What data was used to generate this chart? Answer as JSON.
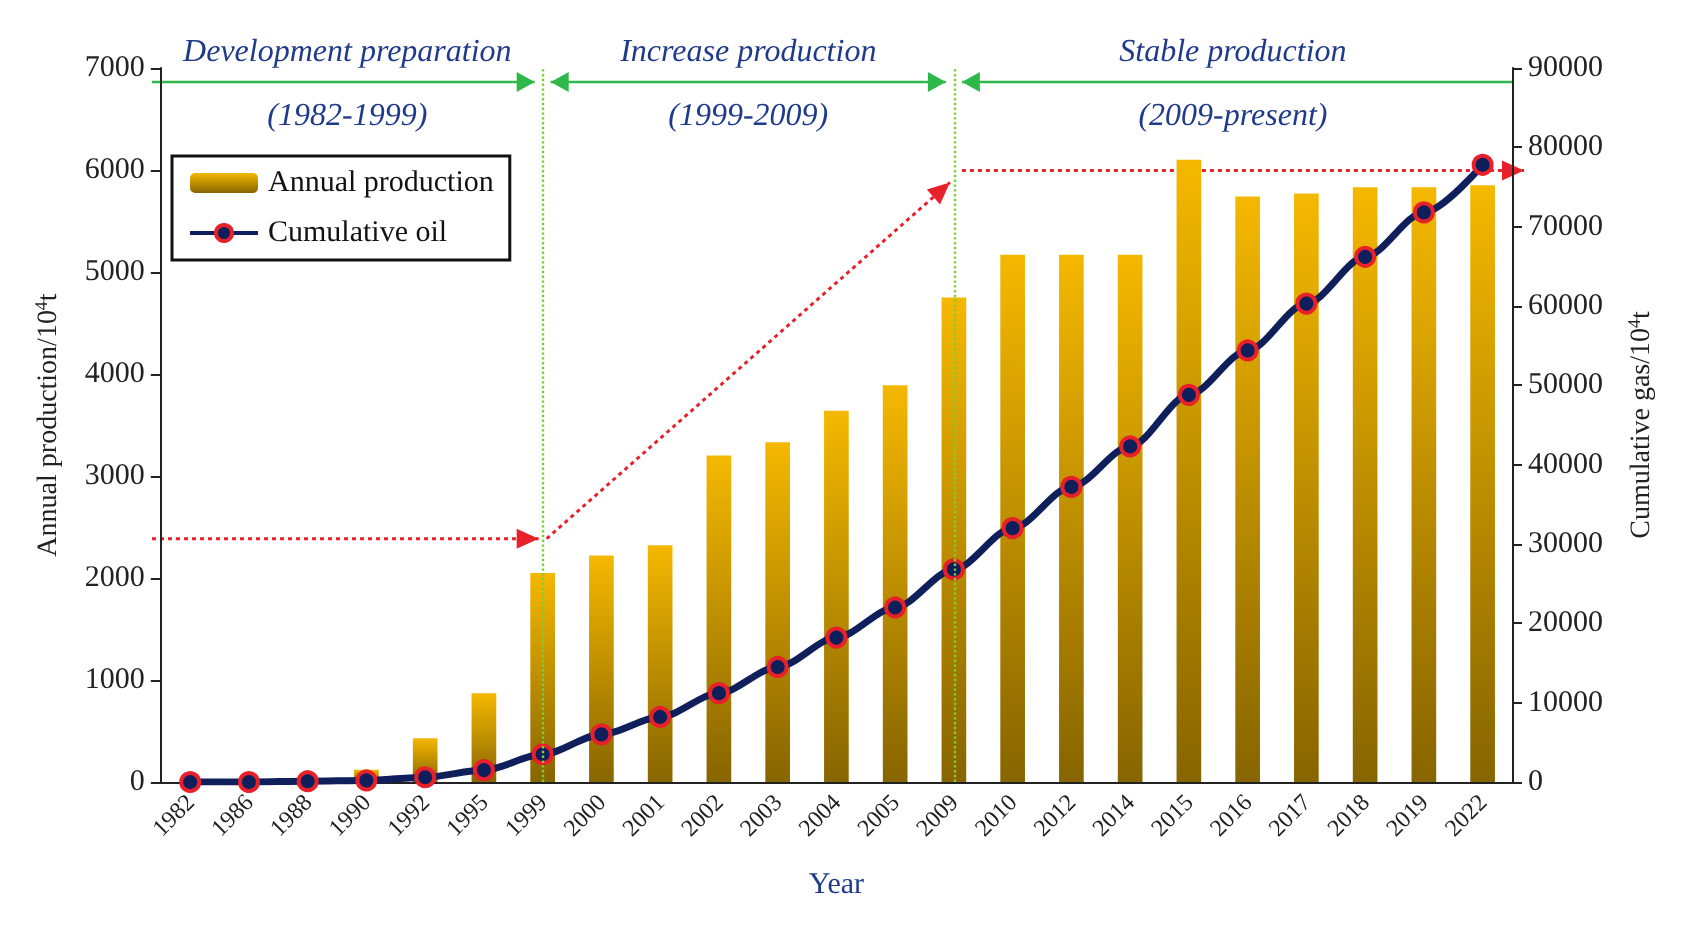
{
  "chart_data": {
    "type": "bar",
    "xlabel": "Year",
    "ylabel": "Annual production/10$^{4}$t",
    "y2label": "Cumulative gas/10$^{4}$t",
    "categories": [
      "1982",
      "1986",
      "1988",
      "1990",
      "1992",
      "1995",
      "1999",
      "2000",
      "2001",
      "2002",
      "2003",
      "2004",
      "2005",
      "2009",
      "2010",
      "2012",
      "2014",
      "2015",
      "2016",
      "2017",
      "2018",
      "2019",
      "2022"
    ],
    "series": [
      {
        "name": "Annual production",
        "color": "#f5b800",
        "values": [
          0,
          0,
          0,
          120,
          430,
          870,
          2050,
          2220,
          2320,
          3200,
          3330,
          3640,
          3890,
          4750,
          5170,
          5170,
          5170,
          6100,
          5740,
          5770,
          5830,
          5830,
          5850
        ]
      },
      {
        "name": "Cumulative oil",
        "type": "line",
        "axis": "y2",
        "color": "#0f1f5c",
        "marker": "circle",
        "values": [
          0,
          0,
          100,
          200,
          600,
          1500,
          3500,
          6000,
          8200,
          11200,
          14500,
          18200,
          22000,
          26800,
          32000,
          37200,
          42300,
          48800,
          54400,
          60300,
          66200,
          71800,
          77800
        ]
      }
    ],
    "ylim": [
      0,
      7000
    ],
    "yticks": [
      0,
      1000,
      2000,
      3000,
      4000,
      5000,
      6000,
      7000
    ],
    "y2lim": [
      0,
      90000
    ],
    "y2ticks": [
      0,
      10000,
      20000,
      30000,
      40000,
      50000,
      60000,
      70000,
      80000,
      90000
    ],
    "ref_lines": [
      {
        "axis": "x",
        "value": "1999",
        "color": "#7ccf3a",
        "line_style": "dotted"
      },
      {
        "axis": "x",
        "value": "2009",
        "color": "#7ccf3a",
        "line_style": "dotted"
      }
    ],
    "annotations": [
      "Development preparation",
      "(1982-1999)",
      "Increase production",
      "(1999-2009)",
      "Stable production",
      "(2009-present)"
    ],
    "legend": "top left",
    "grid": false
  }
}
